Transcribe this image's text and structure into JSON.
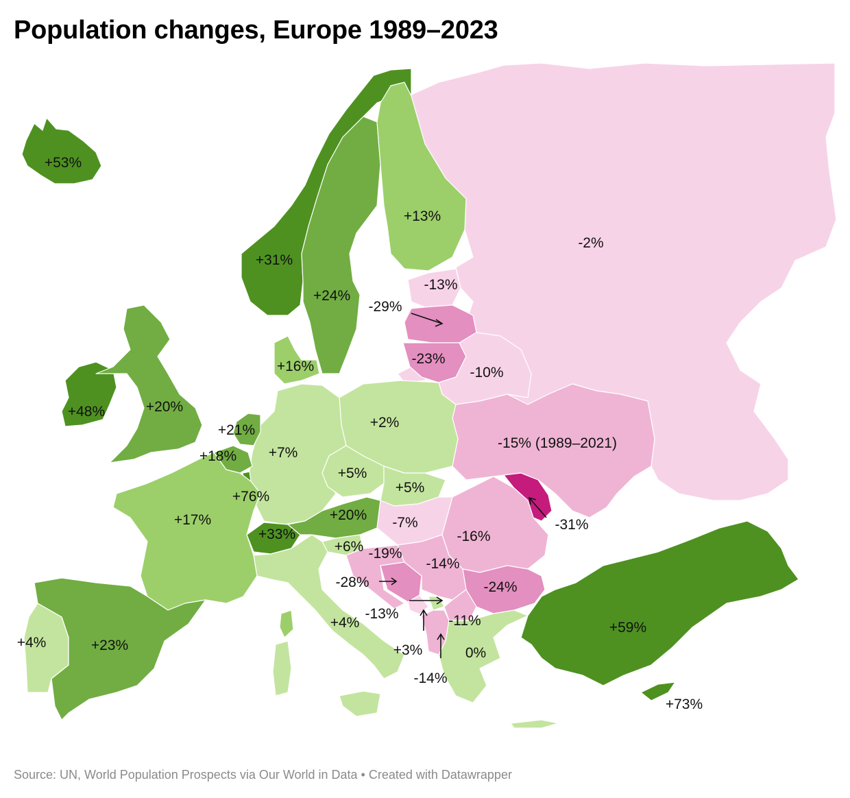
{
  "title": "Population changes, Europe 1989–2023",
  "source": "Source: UN, World Population Prospects via Our World in Data • Created with Datawrapper",
  "colors": {
    "pos_strong": "#4e9121",
    "pos_high": "#71ad43",
    "pos_mid": "#9ccf6a",
    "pos_low": "#c3e49e",
    "neg_light": "#f7d3e8",
    "neg_mid": "#efb4d4",
    "neg_deep": "#e38fc0",
    "neg_strong": "#c51b7d"
  },
  "countries": [
    {
      "name": "Iceland",
      "change": "+53%"
    },
    {
      "name": "Norway",
      "change": "+31%"
    },
    {
      "name": "Sweden",
      "change": "+24%"
    },
    {
      "name": "Finland",
      "change": "+13%"
    },
    {
      "name": "Russia",
      "change": "-2%"
    },
    {
      "name": "Estonia",
      "change": "-13%"
    },
    {
      "name": "Latvia",
      "change": "-29%"
    },
    {
      "name": "Lithuania",
      "change": "-23%"
    },
    {
      "name": "Belarus",
      "change": "-10%"
    },
    {
      "name": "Denmark",
      "change": "+16%"
    },
    {
      "name": "Ireland",
      "change": "+48%"
    },
    {
      "name": "United Kingdom",
      "change": "+20%"
    },
    {
      "name": "Netherlands",
      "change": "+21%"
    },
    {
      "name": "Belgium",
      "change": "+18%"
    },
    {
      "name": "Luxembourg",
      "change": "+76%"
    },
    {
      "name": "Germany",
      "change": "+7%"
    },
    {
      "name": "Poland",
      "change": "+2%"
    },
    {
      "name": "Czechia",
      "change": "+5%"
    },
    {
      "name": "Slovakia",
      "change": "+5%"
    },
    {
      "name": "Ukraine",
      "change": "-15% (1989–2021)"
    },
    {
      "name": "Moldova",
      "change": "-31%"
    },
    {
      "name": "France",
      "change": "+17%"
    },
    {
      "name": "Switzerland",
      "change": "+33%"
    },
    {
      "name": "Austria",
      "change": "+20%"
    },
    {
      "name": "Hungary",
      "change": "-7%"
    },
    {
      "name": "Romania",
      "change": "-16%"
    },
    {
      "name": "Slovenia",
      "change": "+6%"
    },
    {
      "name": "Croatia",
      "change": "-19%"
    },
    {
      "name": "Serbia",
      "change": "-14%"
    },
    {
      "name": "Bosnia and Herzegovina",
      "change": "-28%"
    },
    {
      "name": "Bulgaria",
      "change": "-24%"
    },
    {
      "name": "Montenegro",
      "change": "-13%"
    },
    {
      "name": "North Macedonia",
      "change": "-11%"
    },
    {
      "name": "Albania",
      "change": "-14%"
    },
    {
      "name": "Kosovo",
      "change": "+3%"
    },
    {
      "name": "Italy",
      "change": "+4%"
    },
    {
      "name": "Greece",
      "change": "0%"
    },
    {
      "name": "Portugal",
      "change": "+4%"
    },
    {
      "name": "Spain",
      "change": "+23%"
    },
    {
      "name": "Turkey",
      "change": "+59%"
    },
    {
      "name": "Cyprus",
      "change": "+73%"
    }
  ]
}
